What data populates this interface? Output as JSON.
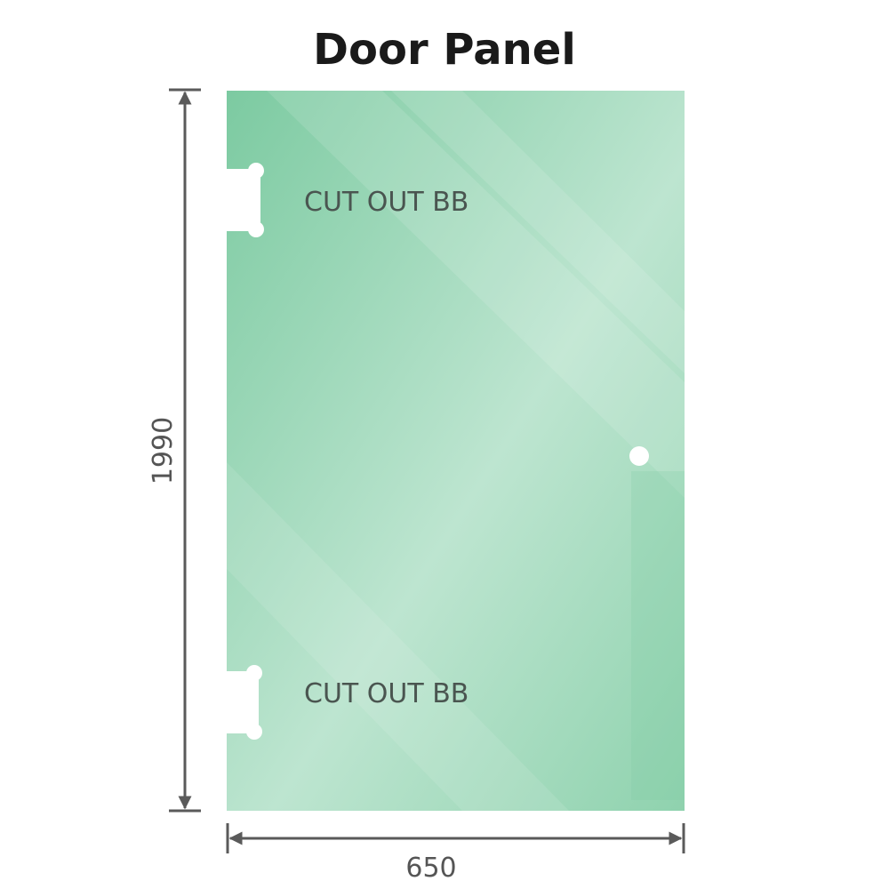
{
  "title": "Door Panel",
  "panel": {
    "cutout_top_label": "CUT OUT BB",
    "cutout_bottom_label": "CUT OUT BB",
    "glass_color": "#86cfa8",
    "glass_light_color": "#bfe6d2"
  },
  "dimensions": {
    "height_label": "1990",
    "width_label": "650",
    "line_color": "#5a5a5a"
  }
}
